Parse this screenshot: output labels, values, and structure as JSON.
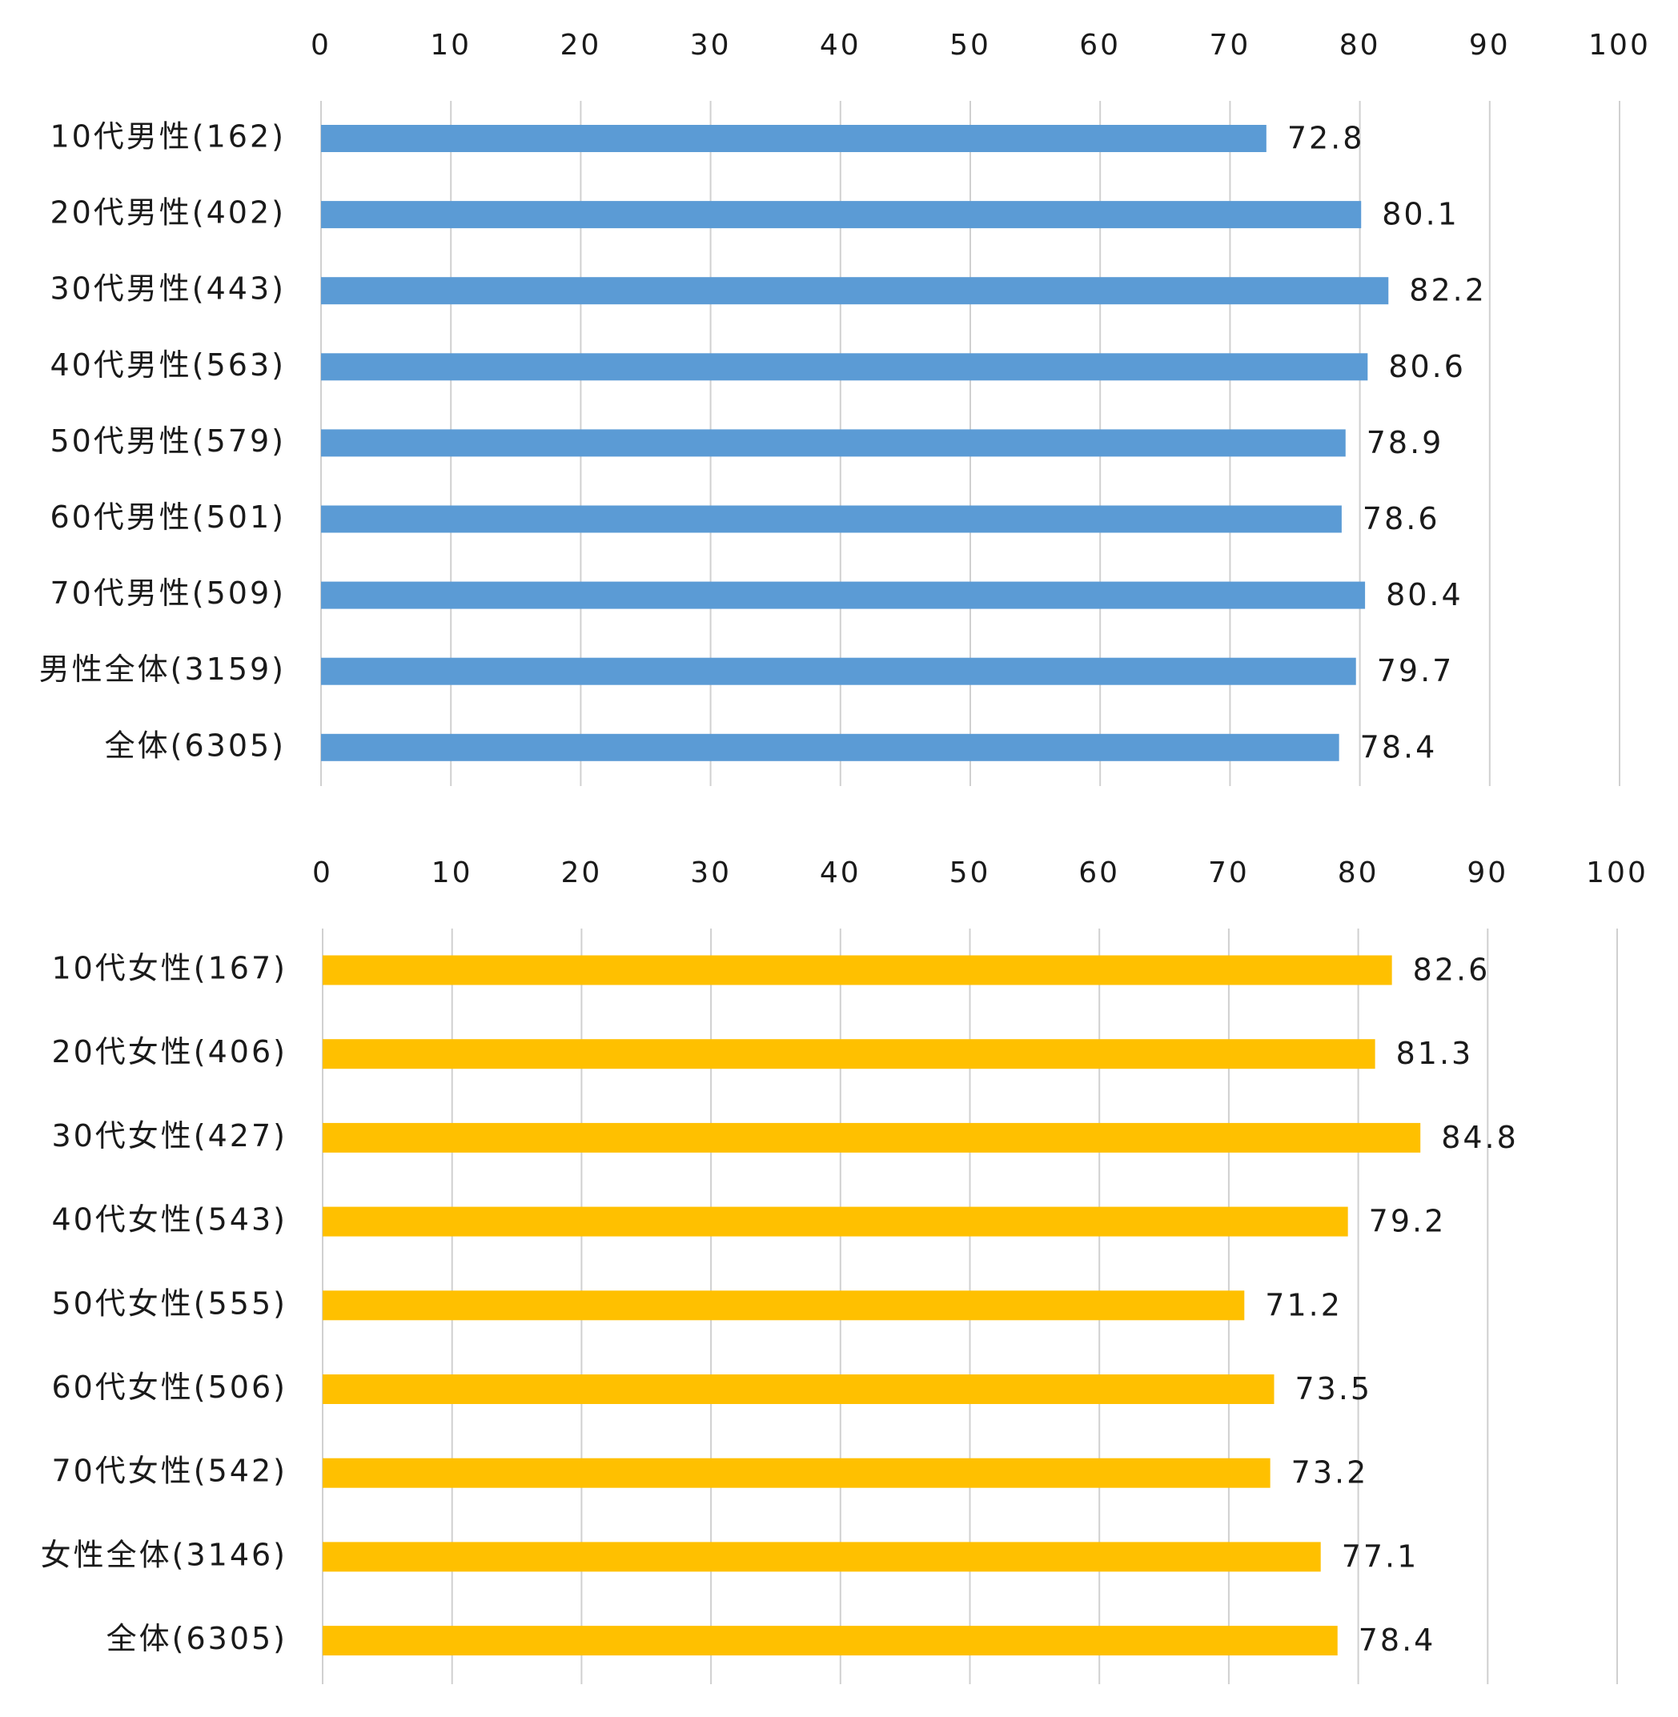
{
  "chart_data": [
    {
      "type": "bar",
      "orientation": "horizontal",
      "axis_position": "top",
      "xlim": [
        0,
        100
      ],
      "ticks": [
        0,
        10,
        20,
        30,
        40,
        50,
        60,
        70,
        80,
        90,
        100
      ],
      "grid": true,
      "bar_color": "#5B9BD5",
      "categories": [
        "10代男性(162)",
        "20代男性(402)",
        "30代男性(443)",
        "40代男性(563)",
        "50代男性(579)",
        "60代男性(501)",
        "70代男性(509)",
        "男性全体(3159)",
        "全体(6305)"
      ],
      "values": [
        72.8,
        80.1,
        82.2,
        80.6,
        78.9,
        78.6,
        80.4,
        79.7,
        78.4
      ]
    },
    {
      "type": "bar",
      "orientation": "horizontal",
      "axis_position": "top",
      "xlim": [
        0,
        100
      ],
      "ticks": [
        0,
        10,
        20,
        30,
        40,
        50,
        60,
        70,
        80,
        90,
        100
      ],
      "grid": true,
      "bar_color": "#FFC000",
      "categories": [
        "10代女性(167)",
        "20代女性(406)",
        "30代女性(427)",
        "40代女性(543)",
        "50代女性(555)",
        "60代女性(506)",
        "70代女性(542)",
        "女性全体(3146)",
        "全体(6305)"
      ],
      "values": [
        82.6,
        81.3,
        84.8,
        79.2,
        71.2,
        73.5,
        73.2,
        77.1,
        78.4
      ]
    }
  ]
}
